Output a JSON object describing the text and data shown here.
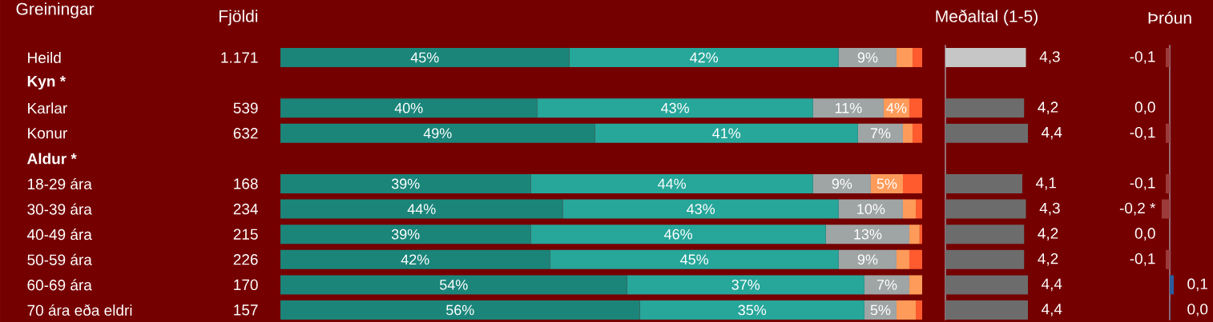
{
  "chart_data": [
    {
      "type": "bar",
      "orientation": "horizontal",
      "stacked": true,
      "title": "Greiningar",
      "categories": [
        "Heild",
        "Kyn *",
        "Karlar",
        "Konur",
        "Aldur *",
        "18-29 ára",
        "30-39 ára",
        "40-49 ára",
        "50-59 ára",
        "60-69 ára",
        "70 ára eða eldri"
      ],
      "series": [
        {
          "color": "#1b857a",
          "values": [
            45,
            null,
            40,
            49,
            null,
            39,
            44,
            39,
            42,
            54,
            56
          ],
          "value_labels": [
            "45%",
            null,
            "40%",
            "49%",
            null,
            "39%",
            "44%",
            "39%",
            "42%",
            "54%",
            "56%"
          ]
        },
        {
          "color": "#27a69a",
          "values": [
            42,
            null,
            43,
            41,
            null,
            44,
            43,
            46,
            45,
            37,
            35
          ],
          "value_labels": [
            "42%",
            null,
            "43%",
            "41%",
            null,
            "44%",
            "43%",
            "46%",
            "45%",
            "37%",
            "35%"
          ]
        },
        {
          "color": "#9fa4a4",
          "values": [
            9,
            null,
            11,
            7,
            null,
            9,
            10,
            13,
            9,
            7,
            5
          ],
          "value_labels": [
            "9%",
            null,
            "11%",
            "7%",
            null,
            "9%",
            "10%",
            "13%",
            "9%",
            "7%",
            "5%"
          ]
        },
        {
          "color": "#ff9b5a",
          "values": [
            2.5,
            null,
            4,
            1.5,
            null,
            5,
            2,
            1.6,
            2,
            2,
            3
          ],
          "value_labels": [
            null,
            null,
            "4%",
            null,
            null,
            "5%",
            null,
            null,
            null,
            null,
            null
          ]
        },
        {
          "color": "#ff5b2e",
          "values": [
            1.5,
            null,
            2,
            1.5,
            null,
            3,
            1,
            0.4,
            2,
            0,
            1
          ]
        }
      ]
    },
    {
      "type": "other",
      "title": "Fjöldi",
      "categories": [
        null,
        null,
        null,
        null,
        null,
        null,
        null,
        null,
        null,
        null,
        null
      ],
      "values": [
        1171,
        null,
        539,
        632,
        null,
        168,
        234,
        215,
        226,
        170,
        157
      ],
      "value_labels": [
        "1.171",
        null,
        "539",
        "632",
        null,
        "168",
        "234",
        "215",
        "226",
        "170",
        "157"
      ]
    },
    {
      "type": "bar",
      "orientation": "horizontal",
      "title": "Meðaltal (1-5)",
      "categories": [
        null,
        null,
        null,
        null,
        null,
        null,
        null,
        null,
        null,
        null,
        null
      ],
      "values": [
        4.3,
        null,
        4.2,
        4.4,
        null,
        4.1,
        4.3,
        4.2,
        4.2,
        4.4,
        4.4
      ],
      "value_labels": [
        "4,3",
        null,
        "4,2",
        "4,4",
        null,
        "4,1",
        "4,3",
        "4,2",
        "4,2",
        "4,4",
        "4,4"
      ],
      "colors": [
        "#c6c6c6",
        null,
        "#6c6c6c",
        "#6c6c6c",
        null,
        "#6c6c6c",
        "#6c6c6c",
        "#6c6c6c",
        "#6c6c6c",
        "#6c6c6c",
        "#6c6c6c"
      ]
    },
    {
      "type": "bar",
      "orientation": "horizontal",
      "title": "Þróun",
      "categories": [
        null,
        null,
        null,
        null,
        null,
        null,
        null,
        null,
        null,
        null,
        null
      ],
      "values": [
        -0.1,
        null,
        0.0,
        -0.1,
        null,
        -0.1,
        -0.2,
        0.0,
        -0.1,
        0.1,
        0.01
      ],
      "value_labels": [
        "-0,1",
        null,
        "0,0",
        "-0,1",
        null,
        "-0,1",
        "-0,2 *",
        "0,0",
        "-0,1",
        "0,1",
        "0,0"
      ],
      "colors": [
        "#9c3a3a",
        null,
        "#9c3a3a",
        "#9c3a3a",
        null,
        "#9c3a3a",
        "#9c3a3a",
        "#9c3a3a",
        "#9c3a3a",
        "#2b5d9e",
        "#2b5d9e"
      ]
    }
  ]
}
